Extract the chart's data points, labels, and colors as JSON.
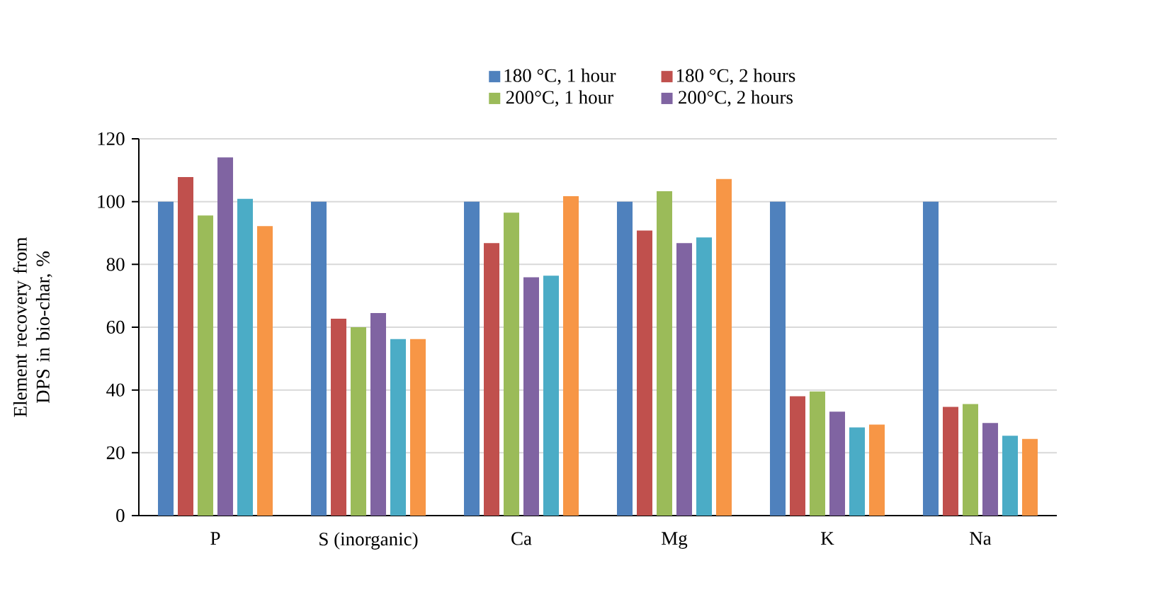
{
  "chart_data": {
    "type": "bar",
    "ylabel": "Element recovery from DPS in bio-char, %",
    "categories": [
      "P",
      "S (inorganic)",
      "Ca",
      "Mg",
      "K",
      "Na"
    ],
    "series": [
      {
        "name": "180 °C, 1 hour",
        "color": "#4f81bd",
        "values": [
          100,
          100,
          100,
          100,
          100,
          100
        ]
      },
      {
        "name": "180 °C, 2 hours",
        "color": "#c0504d",
        "values": [
          107.8,
          62.7,
          86.8,
          90.8,
          38,
          34.6
        ]
      },
      {
        "name": "200°C, 1 hour",
        "color": "#9bbb59",
        "values": [
          95.6,
          60,
          96.5,
          103.3,
          39.5,
          35.5
        ]
      },
      {
        "name": "200°C, 2 hours",
        "color": "#8064a2",
        "values": [
          114.1,
          64.5,
          75.9,
          86.8,
          33.1,
          29.5
        ]
      },
      {
        "color": "#4bacc6",
        "values": [
          100.9,
          56.2,
          76.4,
          88.6,
          28.1,
          25.4
        ]
      },
      {
        "color": "#f79646",
        "values": [
          92.2,
          56.2,
          101.7,
          107.2,
          29,
          24.4
        ]
      }
    ],
    "ylim": [
      0,
      120
    ],
    "yticks": [
      0,
      20,
      40,
      60,
      80,
      100,
      120
    ],
    "grid": "y",
    "legend": "top"
  }
}
